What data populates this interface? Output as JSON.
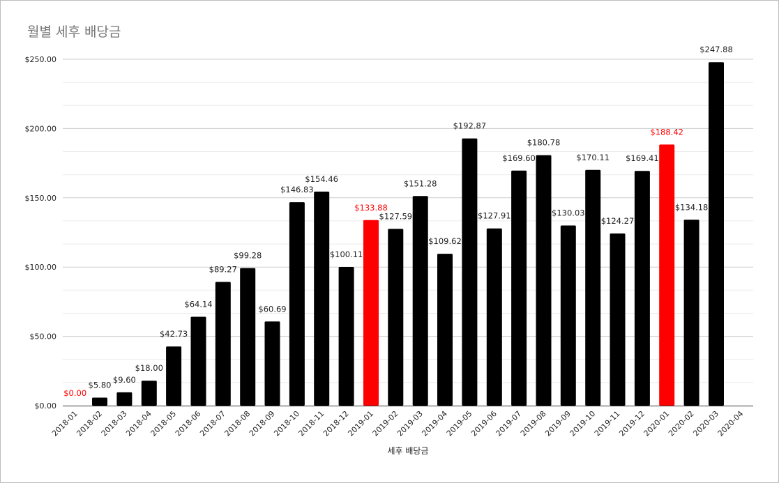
{
  "chart_data": {
    "type": "bar",
    "title": "월별 세후 배당금",
    "xlabel": "세후 배당금",
    "ylabel": "",
    "ylim": [
      0,
      250
    ],
    "y_ticks": [
      "$0.00",
      "$50.00",
      "$100.00",
      "$150.00",
      "$200.00",
      "$250.00"
    ],
    "grid": true,
    "legend": "none",
    "colors": {
      "default": "#000000",
      "highlight": "#ff0000",
      "grid_major": "#cccccc",
      "grid_minor": "#ebebeb"
    },
    "categories": [
      "2018-01",
      "2018-02",
      "2018-03",
      "2018-04",
      "2018-05",
      "2018-06",
      "2018-07",
      "2018-08",
      "2018-09",
      "2018-10",
      "2018-11",
      "2018-12",
      "2019-01",
      "2019-02",
      "2019-03",
      "2019-04",
      "2019-05",
      "2019-06",
      "2019-07",
      "2019-08",
      "2019-09",
      "2019-10",
      "2019-11",
      "2019-12",
      "2020-01",
      "2020-02",
      "2020-03",
      "2020-04"
    ],
    "values": [
      0,
      5.8,
      9.6,
      18.0,
      42.73,
      64.14,
      89.27,
      99.28,
      60.69,
      146.83,
      154.46,
      100.11,
      133.88,
      127.59,
      151.28,
      109.62,
      192.87,
      127.91,
      169.6,
      180.78,
      130.03,
      170.11,
      124.27,
      169.41,
      188.42,
      134.18,
      247.88,
      null
    ],
    "data_labels": [
      "$0.00",
      "$5.80",
      "$9.60",
      "$18.00",
      "$42.73",
      "$64.14",
      "$89.27",
      "$99.28",
      "$60.69",
      "$146.83",
      "$154.46",
      "$100.11",
      "$133.88",
      "$127.59",
      "$151.28",
      "$109.62",
      "$192.87",
      "$127.91",
      "$169.60",
      "$180.78",
      "$130.03",
      "$170.11",
      "$124.27",
      "$169.41",
      "$188.42",
      "$134.18",
      "$247.88",
      ""
    ],
    "highlighted": [
      "2018-01",
      "2019-01",
      "2020-01"
    ]
  }
}
